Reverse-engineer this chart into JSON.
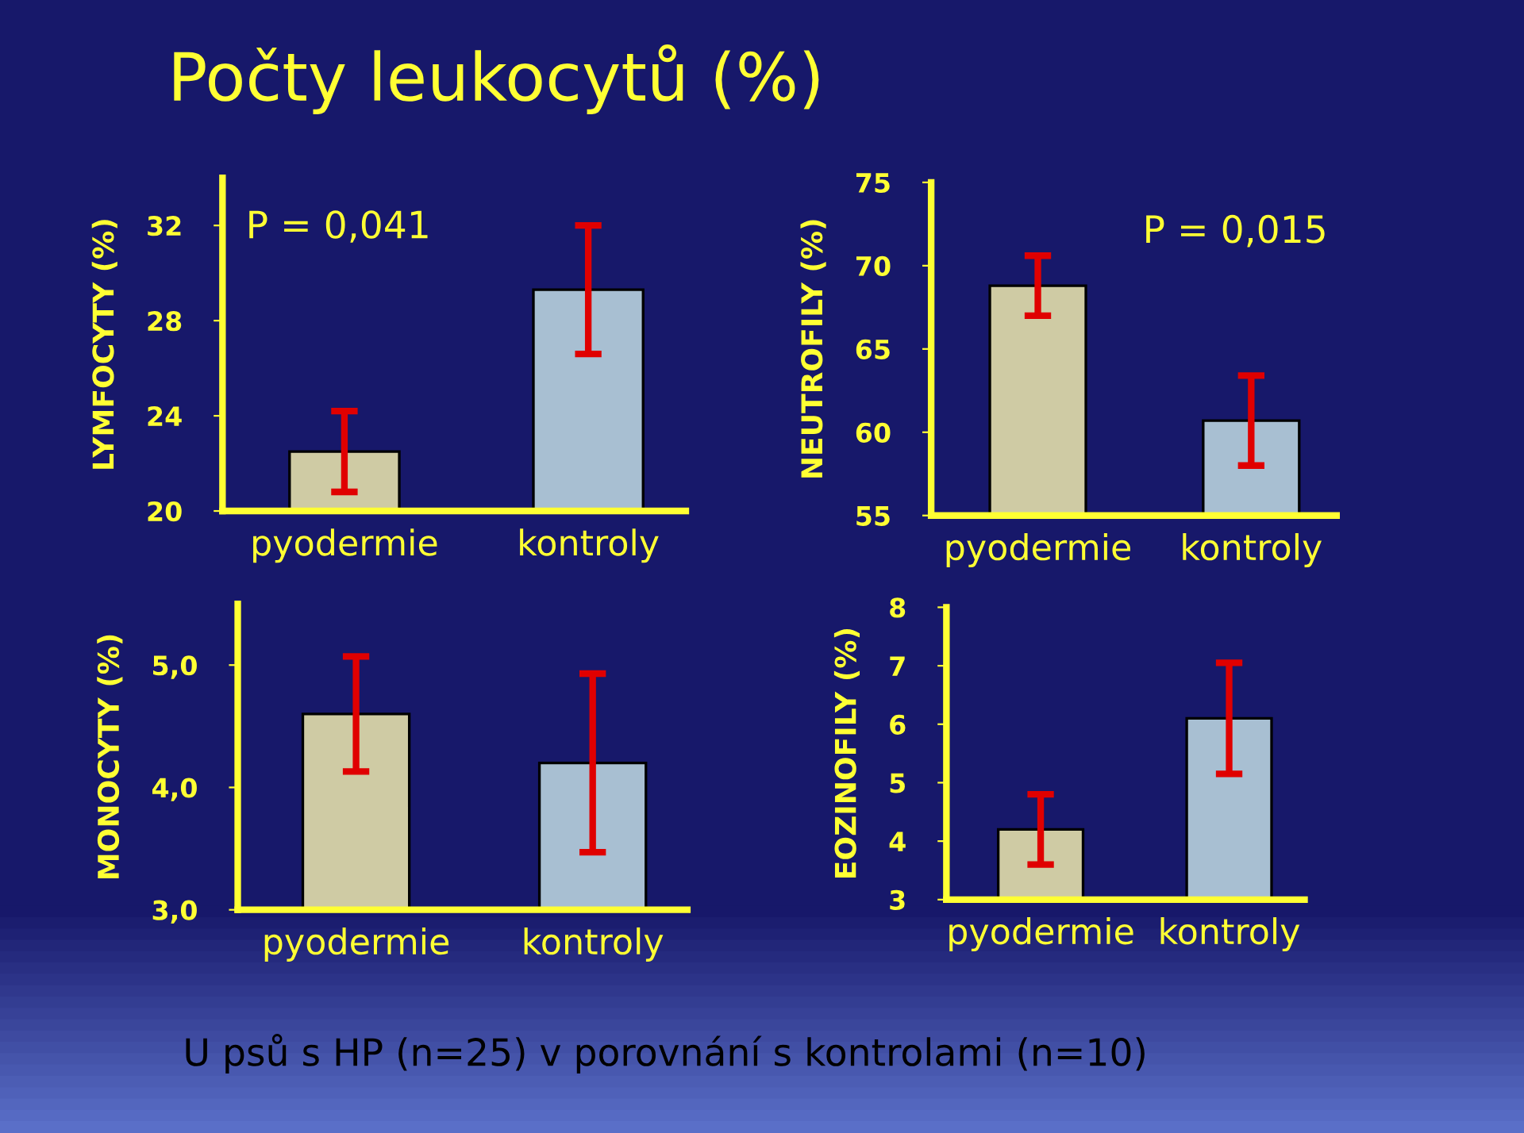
{
  "chart_data": [
    {
      "type": "bar",
      "title": "Počty leukocytů (%)",
      "ylabel": "LYMFOCYTY (%)",
      "categories": [
        "pyodermie",
        "kontroly"
      ],
      "values": [
        22.5,
        29.3
      ],
      "errors": [
        1.7,
        2.7
      ],
      "colors": [
        "#cfcba4",
        "#a8bfd2"
      ],
      "ylim": [
        20,
        34
      ],
      "yticks": [
        20,
        24,
        28,
        32
      ],
      "annotations": [
        "P = 0,041"
      ],
      "grid": false,
      "legend": false
    },
    {
      "type": "bar",
      "ylabel": "NEUTROFILY (%)",
      "categories": [
        "pyodermie",
        "kontroly"
      ],
      "values": [
        68.8,
        60.7
      ],
      "errors": [
        1.8,
        2.7
      ],
      "colors": [
        "#cfcba4",
        "#a8bfd2"
      ],
      "ylim": [
        55,
        75
      ],
      "yticks": [
        55,
        60,
        65,
        70,
        75
      ],
      "annotations": [
        "P = 0,015"
      ],
      "grid": false,
      "legend": false
    },
    {
      "type": "bar",
      "ylabel": "MONOCYTY (%)",
      "categories": [
        "pyodermie",
        "kontroly"
      ],
      "values": [
        4.6,
        4.2
      ],
      "errors": [
        0.47,
        0.73
      ],
      "colors": [
        "#cfcba4",
        "#a8bfd2"
      ],
      "ylim": [
        3,
        5.5
      ],
      "yticks": [
        {
          "value": 3,
          "label": "3,0"
        },
        {
          "value": 4,
          "label": "4,0"
        },
        {
          "value": 5,
          "label": "5,0"
        }
      ],
      "annotations": [
        "U psů s HP (n=25) v porovnání s kontrolami (n=10)"
      ],
      "grid": false,
      "legend": false
    },
    {
      "type": "bar",
      "ylabel": "EOZINOFILY (%)",
      "categories": [
        "pyodermie",
        "kontroly"
      ],
      "values": [
        4.2,
        6.1
      ],
      "errors": [
        0.6,
        0.95
      ],
      "colors": [
        "#cfcba4",
        "#a8bfd2"
      ],
      "ylim": [
        3,
        8
      ],
      "yticks": [
        3,
        4,
        5,
        6,
        7,
        8
      ],
      "grid": false,
      "legend": false
    }
  ]
}
